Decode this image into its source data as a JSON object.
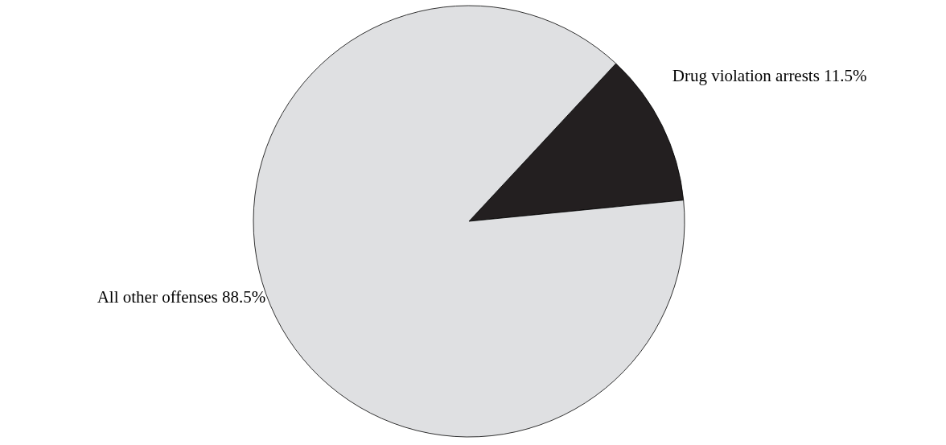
{
  "chart_data": {
    "type": "pie",
    "categories": [
      "Drug violation arrests",
      "All other offenses"
    ],
    "values": [
      11.5,
      88.5
    ],
    "value_labels": [
      "11.5%",
      "88.5%"
    ],
    "colors": [
      "#231f20",
      "#dfe0e2"
    ],
    "legend": false
  }
}
